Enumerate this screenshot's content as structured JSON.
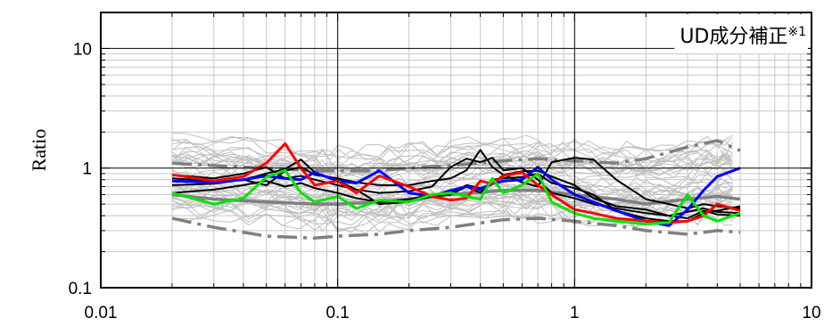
{
  "chart_data": {
    "type": "line",
    "title": "",
    "annotation": "UD成分補正※1",
    "xlabel": "",
    "ylabel": "Ratio",
    "x_scale": "log",
    "y_scale": "log",
    "xlim": [
      0.01,
      10
    ],
    "ylim": [
      0.1,
      20
    ],
    "x_ticks": [
      "0.01",
      "0.1",
      "1",
      "10"
    ],
    "y_ticks": [
      "0.1",
      "1",
      "10"
    ],
    "grid": true,
    "legend": "none",
    "colors": {
      "frame": "#000000",
      "grid_major": "#000000",
      "grid_minor": "#c8c8c8",
      "background_traces": "#c0c0c0",
      "stat_lines": "#808080",
      "black": "#000000",
      "blue": "#0000ff",
      "red": "#ff0000",
      "green": "#00e600"
    },
    "background_band": {
      "x": [
        0.02,
        0.03,
        0.05,
        0.08,
        0.1,
        0.15,
        0.2,
        0.3,
        0.5,
        0.7,
        1.0,
        1.5,
        2.0,
        3.0,
        4.0,
        5.0
      ],
      "center": [
        0.9,
        0.85,
        0.8,
        0.75,
        0.7,
        0.72,
        0.75,
        0.8,
        0.85,
        0.85,
        0.8,
        0.75,
        0.75,
        0.8,
        0.85,
        0.85
      ],
      "count": 45
    },
    "series": [
      {
        "color": "gray-mean",
        "x": [
          0.02,
          0.03,
          0.05,
          0.08,
          0.1,
          0.15,
          0.2,
          0.3,
          0.5,
          0.7,
          1.0,
          1.5,
          2.0,
          3.0,
          4.0,
          5.0
        ],
        "y": [
          0.6,
          0.55,
          0.52,
          0.5,
          0.5,
          0.52,
          0.55,
          0.6,
          0.65,
          0.65,
          0.6,
          0.55,
          0.5,
          0.55,
          0.58,
          0.55
        ]
      },
      {
        "color": "gray-upper",
        "x": [
          0.02,
          0.03,
          0.05,
          0.08,
          0.1,
          0.15,
          0.2,
          0.3,
          0.5,
          0.7,
          1.0,
          1.5,
          2.0,
          3.0,
          4.0,
          5.0
        ],
        "y": [
          1.1,
          1.05,
          1.0,
          0.95,
          0.95,
          0.95,
          1.0,
          1.05,
          1.15,
          1.2,
          1.15,
          1.1,
          1.2,
          1.5,
          1.7,
          1.4
        ]
      },
      {
        "color": "gray-lower",
        "x": [
          0.02,
          0.03,
          0.05,
          0.08,
          0.1,
          0.15,
          0.2,
          0.3,
          0.5,
          0.7,
          1.0,
          1.5,
          2.0,
          3.0,
          4.0,
          5.0
        ],
        "y": [
          0.38,
          0.32,
          0.27,
          0.26,
          0.27,
          0.28,
          0.3,
          0.32,
          0.37,
          0.38,
          0.36,
          0.33,
          0.3,
          0.28,
          0.3,
          0.29
        ]
      },
      {
        "color": "black",
        "x": [
          0.02,
          0.03,
          0.04,
          0.05,
          0.06,
          0.07,
          0.08,
          0.1,
          0.12,
          0.15,
          0.2,
          0.25,
          0.3,
          0.35,
          0.4,
          0.45,
          0.5,
          0.6,
          0.7,
          0.8,
          1.0,
          1.2,
          1.5,
          2.0,
          2.5,
          3.0,
          3.5,
          4.0,
          5.0
        ],
        "y": [
          0.88,
          0.82,
          0.9,
          1.02,
          0.82,
          0.86,
          0.8,
          0.72,
          0.66,
          0.62,
          0.64,
          0.7,
          1.02,
          1.2,
          1.12,
          1.22,
          0.96,
          1.0,
          0.8,
          0.62,
          0.56,
          0.5,
          0.46,
          0.42,
          0.4,
          0.43,
          0.46,
          0.43,
          0.42
        ]
      },
      {
        "color": "black",
        "x": [
          0.02,
          0.03,
          0.04,
          0.05,
          0.06,
          0.07,
          0.08,
          0.1,
          0.12,
          0.15,
          0.2,
          0.25,
          0.3,
          0.35,
          0.4,
          0.45,
          0.5,
          0.6,
          0.7,
          0.8,
          1.0,
          1.2,
          1.5,
          2.0,
          2.5,
          3.0,
          3.5,
          4.0,
          5.0
        ],
        "y": [
          0.82,
          0.78,
          0.8,
          0.72,
          0.95,
          1.02,
          0.88,
          0.82,
          0.76,
          0.72,
          0.72,
          0.78,
          0.82,
          0.96,
          1.42,
          1.02,
          0.88,
          0.76,
          0.7,
          1.12,
          1.22,
          1.18,
          0.8,
          0.55,
          0.5,
          0.46,
          0.5,
          0.48,
          0.46
        ]
      },
      {
        "color": "black",
        "x": [
          0.02,
          0.03,
          0.04,
          0.05,
          0.06,
          0.07,
          0.08,
          0.1,
          0.12,
          0.15,
          0.2,
          0.25,
          0.3,
          0.35,
          0.4,
          0.45,
          0.5,
          0.6,
          0.7,
          0.8,
          1.0,
          1.2,
          1.5,
          2.0,
          2.5,
          3.0,
          3.5,
          4.0,
          5.0
        ],
        "y": [
          0.62,
          0.66,
          0.72,
          0.78,
          0.7,
          0.75,
          0.68,
          0.62,
          0.56,
          0.52,
          0.55,
          0.6,
          0.62,
          0.72,
          0.68,
          0.74,
          0.88,
          0.94,
          0.95,
          0.85,
          0.72,
          0.56,
          0.48,
          0.45,
          0.4,
          0.38,
          0.44,
          0.41,
          0.4
        ]
      },
      {
        "color": "black",
        "x": [
          0.02,
          0.03,
          0.04,
          0.05,
          0.06,
          0.07,
          0.08,
          0.1,
          0.12,
          0.15,
          0.2,
          0.25,
          0.3,
          0.35,
          0.4,
          0.45,
          0.5,
          0.6,
          0.7,
          0.8,
          1.0,
          1.2,
          1.5,
          2.0,
          2.5,
          3.0,
          3.5,
          4.0,
          5.0
        ],
        "y": [
          0.72,
          0.74,
          0.8,
          0.9,
          0.98,
          1.18,
          0.92,
          0.78,
          0.66,
          0.5,
          0.52,
          0.58,
          0.6,
          0.7,
          0.62,
          0.8,
          0.82,
          0.84,
          0.9,
          0.75,
          0.68,
          0.6,
          0.44,
          0.38,
          0.36,
          0.36,
          0.42,
          0.44,
          0.48
        ]
      },
      {
        "color": "blue",
        "x": [
          0.02,
          0.03,
          0.04,
          0.05,
          0.06,
          0.07,
          0.08,
          0.1,
          0.12,
          0.15,
          0.2,
          0.25,
          0.3,
          0.35,
          0.4,
          0.45,
          0.5,
          0.6,
          0.7,
          0.8,
          1.0,
          1.2,
          1.5,
          2.0,
          2.5,
          3.0,
          3.5,
          4.0,
          5.0
        ],
        "y": [
          0.78,
          0.76,
          0.8,
          0.86,
          0.82,
          0.8,
          0.92,
          0.78,
          0.75,
          0.95,
          0.62,
          0.58,
          0.65,
          0.7,
          0.66,
          0.74,
          0.78,
          0.8,
          1.02,
          0.8,
          0.6,
          0.52,
          0.44,
          0.36,
          0.33,
          0.45,
          0.65,
          0.85,
          1.0
        ]
      },
      {
        "color": "red",
        "x": [
          0.02,
          0.03,
          0.04,
          0.05,
          0.06,
          0.07,
          0.08,
          0.1,
          0.12,
          0.15,
          0.2,
          0.25,
          0.3,
          0.35,
          0.4,
          0.45,
          0.5,
          0.6,
          0.7,
          0.8,
          1.0,
          1.2,
          1.5,
          2.0,
          2.5,
          3.0,
          3.5,
          4.0,
          5.0
        ],
        "y": [
          0.88,
          0.78,
          0.85,
          1.1,
          1.6,
          1.0,
          0.72,
          0.78,
          0.62,
          0.86,
          0.7,
          0.58,
          0.54,
          0.56,
          0.78,
          0.74,
          0.86,
          0.92,
          0.72,
          0.6,
          0.45,
          0.42,
          0.38,
          0.36,
          0.35,
          0.36,
          0.4,
          0.5,
          0.44
        ]
      },
      {
        "color": "green",
        "x": [
          0.02,
          0.03,
          0.04,
          0.05,
          0.06,
          0.07,
          0.08,
          0.1,
          0.12,
          0.15,
          0.2,
          0.25,
          0.3,
          0.35,
          0.4,
          0.45,
          0.5,
          0.6,
          0.7,
          0.8,
          1.0,
          1.2,
          1.5,
          2.0,
          2.5,
          3.0,
          3.5,
          4.0,
          5.0
        ],
        "y": [
          0.62,
          0.5,
          0.56,
          0.84,
          0.96,
          0.62,
          0.52,
          0.58,
          0.46,
          0.54,
          0.52,
          0.6,
          0.62,
          0.58,
          0.55,
          0.82,
          0.62,
          0.72,
          0.9,
          0.52,
          0.42,
          0.38,
          0.36,
          0.34,
          0.35,
          0.6,
          0.4,
          0.36,
          0.42
        ]
      }
    ]
  }
}
